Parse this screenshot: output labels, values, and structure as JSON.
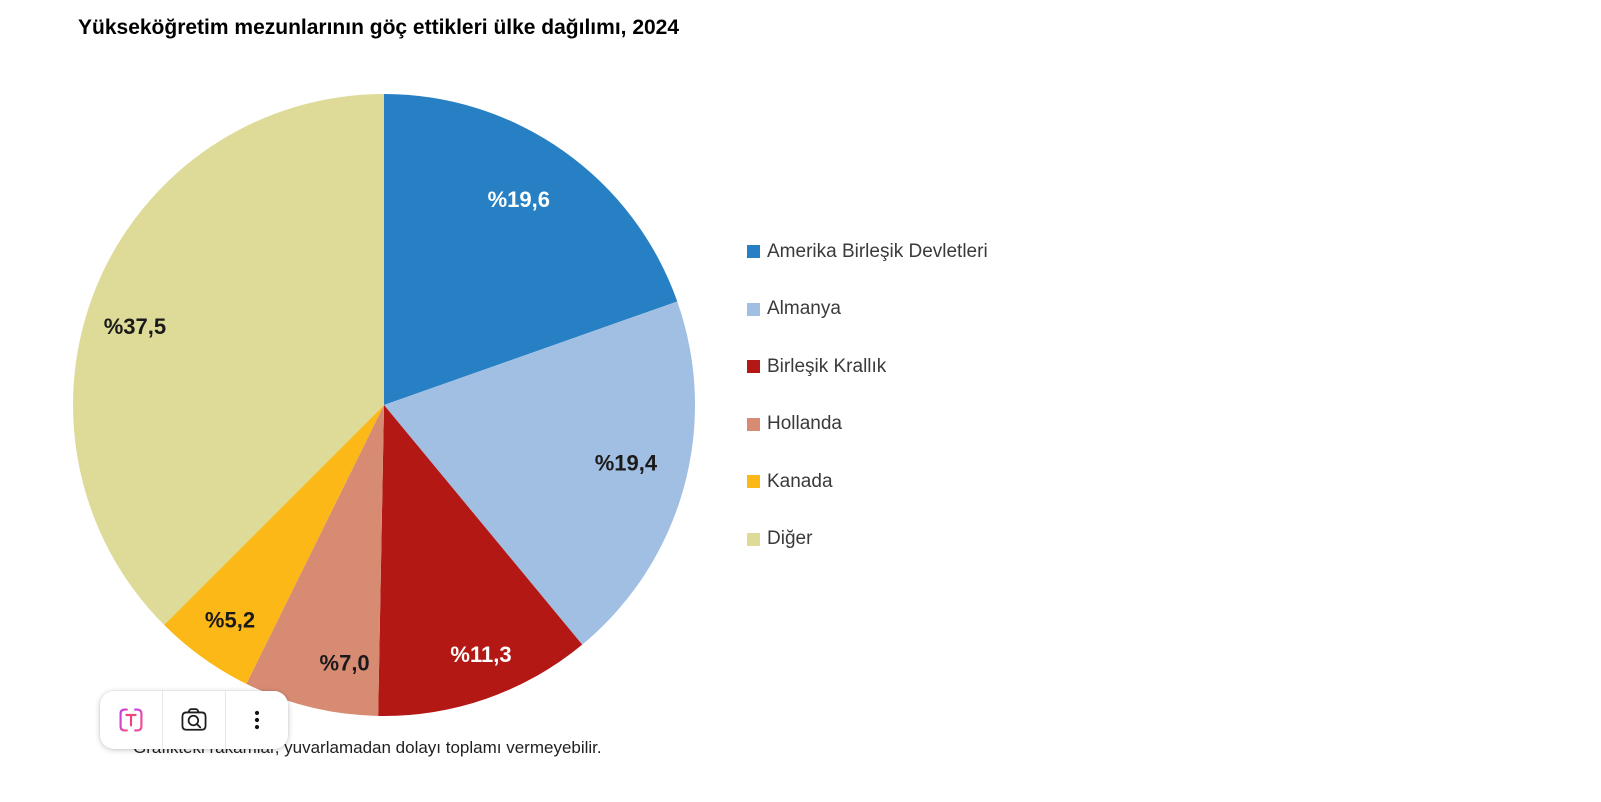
{
  "chart_data": {
    "type": "pie",
    "title": "Yükseköğretim mezunlarının göç ettikleri ülke dağılımı, 2024",
    "footnote": "Grafikteki rakamlar, yuvarlamadan dolayı toplamı vermeyebilir.",
    "unit": "percent",
    "value_prefix": "%",
    "decimal_separator": ",",
    "direction": "clockwise",
    "start_angle_deg": 0,
    "legend_position": "right",
    "slices": [
      {
        "label": "Amerika Birleşik Devletleri",
        "value": 19.6,
        "display": "%19,6",
        "color": "#2680c3",
        "label_color": "#ffffff",
        "label_r": 0.79,
        "label_angle_offset_deg": -2
      },
      {
        "label": "Almanya",
        "value": 19.4,
        "display": "%19,4",
        "color": "#a1bfe2",
        "label_color": "#1a1a1a",
        "label_r": 0.8,
        "label_angle_offset_deg": -2
      },
      {
        "label": "Birleşik Krallık",
        "value": 11.3,
        "display": "%11,3",
        "color": "#b31815",
        "label_color": "#ffffff",
        "label_r": 0.86,
        "label_angle_offset_deg": -2
      },
      {
        "label": "Hollanda",
        "value": 7.0,
        "display": "%7,0",
        "color": "#d88b73",
        "label_color": "#1a1a1a",
        "label_r": 0.84,
        "label_angle_offset_deg": -5
      },
      {
        "label": "Kanada",
        "value": 5.2,
        "display": "%5,2",
        "color": "#fcb817",
        "label_color": "#1a1a1a",
        "label_r": 0.85,
        "label_angle_offset_deg": 0
      },
      {
        "label": "Diğer",
        "value": 37.5,
        "display": "%37,5",
        "color": "#dedb99",
        "label_color": "#1a1a1a",
        "label_r": 0.84,
        "label_angle_offset_deg": -5
      }
    ]
  },
  "toolbar": {
    "buttons": [
      {
        "icon": "text-select-icon"
      },
      {
        "icon": "visual-search-camera-icon"
      },
      {
        "icon": "kebab-menu-icon"
      }
    ]
  }
}
